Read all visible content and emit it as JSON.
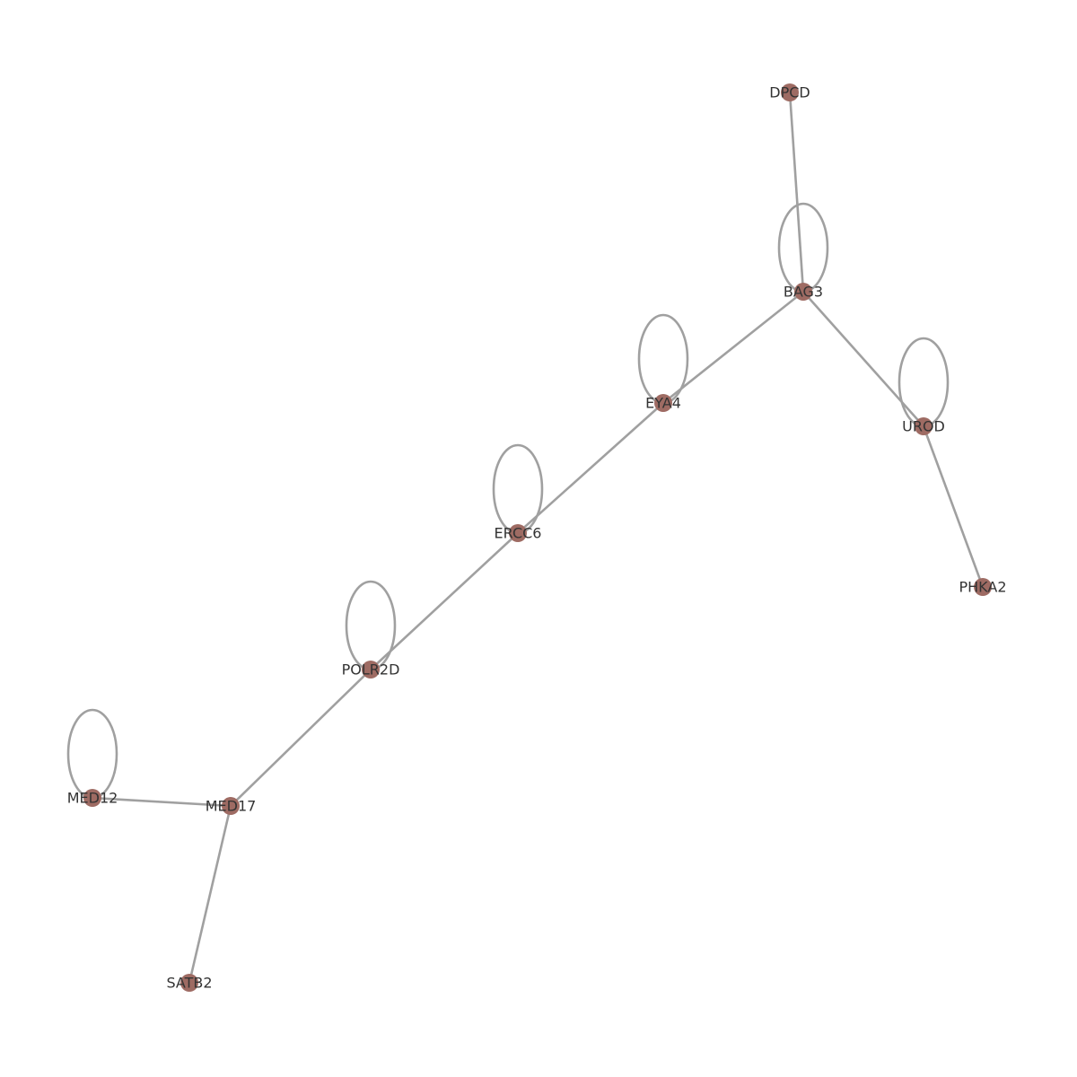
{
  "style": {
    "node_color": "#9e6b63",
    "edge_color": "#a0a0a0",
    "label_color": "#333333"
  },
  "graph": {
    "nodes": [
      {
        "id": "DPCD",
        "label": "DPCD",
        "self_loop": false
      },
      {
        "id": "BAG3",
        "label": "BAG3",
        "self_loop": true
      },
      {
        "id": "EYA4",
        "label": "EYA4",
        "self_loop": true
      },
      {
        "id": "UROD",
        "label": "UROD",
        "self_loop": true
      },
      {
        "id": "ERCC6",
        "label": "ERCC6",
        "self_loop": true
      },
      {
        "id": "PHKA2",
        "label": "PHKA2",
        "self_loop": false
      },
      {
        "id": "POLR2D",
        "label": "POLR2D",
        "self_loop": true
      },
      {
        "id": "MED12",
        "label": "MED12",
        "self_loop": true
      },
      {
        "id": "MED17",
        "label": "MED17",
        "self_loop": false
      },
      {
        "id": "SATB2",
        "label": "SATB2",
        "self_loop": false
      }
    ],
    "edges": [
      {
        "source": "DPCD",
        "target": "BAG3"
      },
      {
        "source": "BAG3",
        "target": "EYA4"
      },
      {
        "source": "BAG3",
        "target": "UROD"
      },
      {
        "source": "EYA4",
        "target": "ERCC6"
      },
      {
        "source": "UROD",
        "target": "PHKA2"
      },
      {
        "source": "ERCC6",
        "target": "POLR2D"
      },
      {
        "source": "POLR2D",
        "target": "MED17"
      },
      {
        "source": "MED12",
        "target": "MED17"
      },
      {
        "source": "MED17",
        "target": "SATB2"
      }
    ]
  }
}
